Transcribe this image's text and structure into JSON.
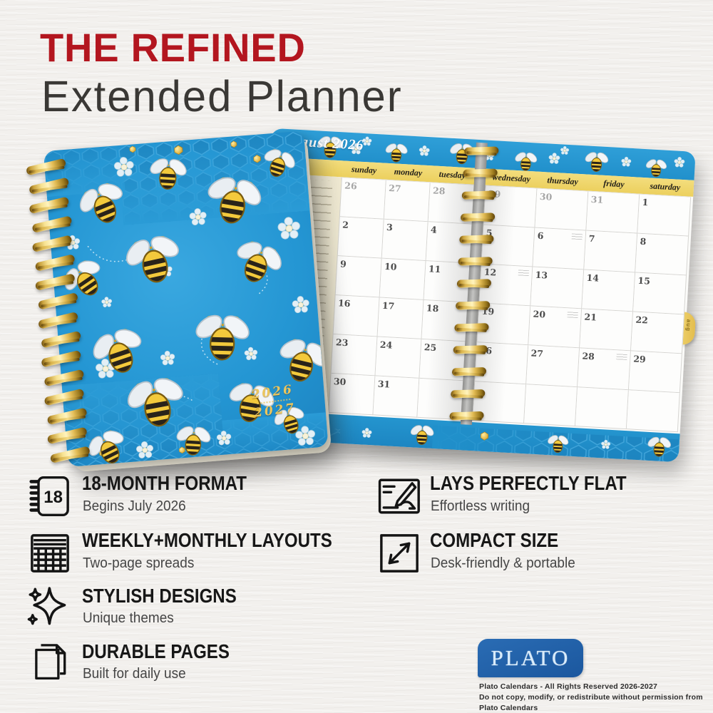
{
  "title": {
    "line1": "THE REFINED",
    "line2": "Extended Planner"
  },
  "colors": {
    "accent_red": "#b3161f",
    "cover_blue": "#2496d3",
    "band_yellow": "#ecd05e",
    "spiral_gold": "#d9ae45",
    "logo_blue": "#1b579e"
  },
  "planner_cover": {
    "year_top": "2026",
    "year_bottom": "2027"
  },
  "calendar": {
    "month_label": "August 2026",
    "tab_label": "aug",
    "day_headers_left": [
      "sunday",
      "monday",
      "tuesday"
    ],
    "day_headers_right": [
      "wednesday",
      "thursday",
      "friday",
      "saturday"
    ],
    "weeks_left": [
      [
        {
          "d": "26",
          "muted": true
        },
        {
          "d": "27",
          "muted": true
        },
        {
          "d": "28",
          "muted": true
        }
      ],
      [
        {
          "d": "2"
        },
        {
          "d": "3"
        },
        {
          "d": "4"
        }
      ],
      [
        {
          "d": "9"
        },
        {
          "d": "10"
        },
        {
          "d": "11"
        }
      ],
      [
        {
          "d": "16"
        },
        {
          "d": "17"
        },
        {
          "d": "18"
        }
      ],
      [
        {
          "d": "23"
        },
        {
          "d": "24"
        },
        {
          "d": "25"
        }
      ],
      [
        {
          "d": "30"
        },
        {
          "d": "31"
        },
        {
          "d": ""
        }
      ]
    ],
    "weeks_right": [
      [
        {
          "d": "29",
          "muted": true
        },
        {
          "d": "30",
          "muted": true
        },
        {
          "d": "31",
          "muted": true
        },
        {
          "d": "1"
        }
      ],
      [
        {
          "d": "5"
        },
        {
          "d": "6",
          "note": true
        },
        {
          "d": "7"
        },
        {
          "d": "8"
        }
      ],
      [
        {
          "d": "12",
          "note": true
        },
        {
          "d": "13"
        },
        {
          "d": "14"
        },
        {
          "d": "15"
        }
      ],
      [
        {
          "d": "19"
        },
        {
          "d": "20",
          "note": true
        },
        {
          "d": "21"
        },
        {
          "d": "22"
        }
      ],
      [
        {
          "d": "26"
        },
        {
          "d": "27"
        },
        {
          "d": "28",
          "note": true
        },
        {
          "d": "29"
        }
      ],
      [
        {
          "d": ""
        },
        {
          "d": ""
        },
        {
          "d": ""
        },
        {
          "d": ""
        }
      ]
    ]
  },
  "features_left": [
    {
      "icon": "notebook-18-icon",
      "title": "18-MONTH FORMAT",
      "subtitle": "Begins July 2026"
    },
    {
      "icon": "calendar-grid-icon",
      "title": "WEEKLY+MONTHLY LAYOUTS",
      "subtitle": "Two-page spreads"
    },
    {
      "icon": "sparkle-icon",
      "title": "STYLISH DESIGNS",
      "subtitle": "Unique themes"
    },
    {
      "icon": "pages-icon",
      "title": "DURABLE PAGES",
      "subtitle": "Built for daily use"
    }
  ],
  "features_right": [
    {
      "icon": "writing-hand-icon",
      "title": "LAYS PERFECTLY FLAT",
      "subtitle": "Effortless writing"
    },
    {
      "icon": "expand-arrows-icon",
      "title": "COMPACT SIZE",
      "subtitle": "Desk-friendly & portable"
    }
  ],
  "footer": {
    "logo_text": "PLATO",
    "copyright_line1": "Plato Calendars - All Rights Reserved 2026-2027",
    "copyright_line2": "Do not copy, modify, or redistribute without permission from Plato Calendars"
  }
}
